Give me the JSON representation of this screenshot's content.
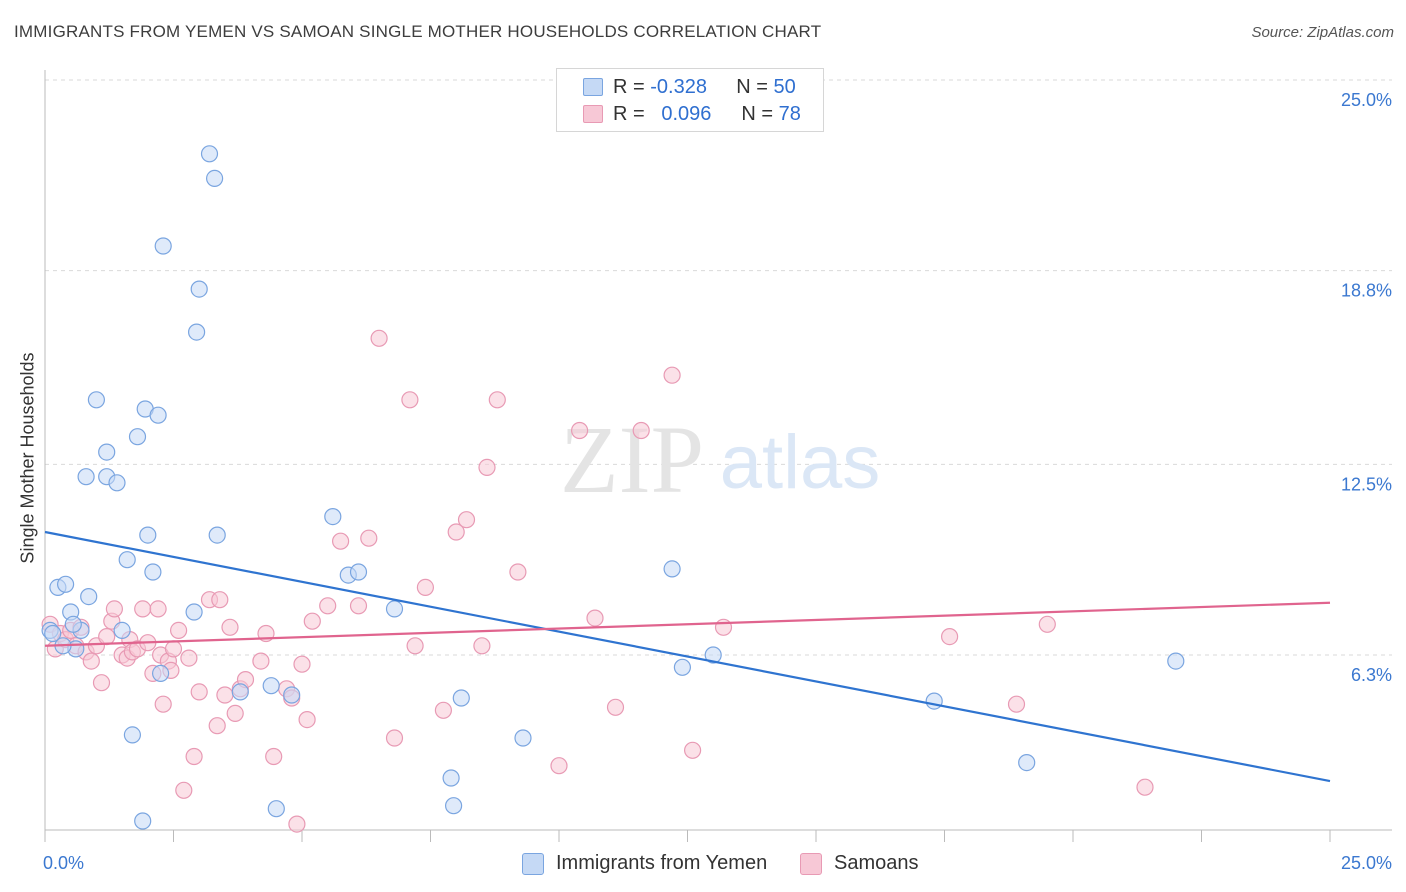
{
  "title": "IMMIGRANTS FROM YEMEN VS SAMOAN SINGLE MOTHER HOUSEHOLDS CORRELATION CHART",
  "source": "Source: ZipAtlas.com",
  "watermark": {
    "zip": "ZIP",
    "atlas": "atlas"
  },
  "legend": {
    "row1": {
      "r_label": "R =",
      "r_value": "-0.328",
      "n_label": "N =",
      "n_value": "50"
    },
    "row2": {
      "r_label": "R =",
      "r_value": "0.096",
      "n_label": "N =",
      "n_value": "78"
    }
  },
  "colors": {
    "blue_fill": "#c5d9f5",
    "blue_stroke": "#7aa5e0",
    "blue_line": "#2f74d0",
    "pink_fill": "#f7c8d6",
    "pink_stroke": "#e89ab4",
    "pink_line": "#e0648e",
    "tick_label": "#3b78d0",
    "grid": "#d9d9d9"
  },
  "chart_data": {
    "type": "scatter",
    "title": "IMMIGRANTS FROM YEMEN VS SAMOAN SINGLE MOTHER HOUSEHOLDS CORRELATION CHART",
    "xlabel": "",
    "ylabel": "Single Mother Households",
    "xlim": [
      0,
      25
    ],
    "ylim": [
      0,
      26
    ],
    "x_tick_labels": [
      "0.0%",
      "25.0%"
    ],
    "y_ticks": [
      6.3,
      12.5,
      18.8,
      25.0
    ],
    "y_tick_labels": [
      "6.3%",
      "12.5%",
      "18.8%",
      "25.0%"
    ],
    "grid": "horizontal dashed",
    "legend_placement": "bottom-center",
    "series": [
      {
        "name": "Immigrants from Yemen",
        "color": "#7aa5e0",
        "trend": {
          "x": [
            0,
            25
          ],
          "y": [
            10.3,
            2.2
          ]
        },
        "points": [
          [
            0.1,
            7.1
          ],
          [
            0.25,
            8.5
          ],
          [
            0.4,
            8.6
          ],
          [
            0.5,
            7.7
          ],
          [
            0.6,
            6.5
          ],
          [
            0.7,
            7.1
          ],
          [
            0.85,
            8.2
          ],
          [
            1.0,
            14.6
          ],
          [
            1.2,
            12.9
          ],
          [
            0.8,
            12.1
          ],
          [
            1.2,
            12.1
          ],
          [
            1.4,
            11.9
          ],
          [
            1.5,
            7.1
          ],
          [
            1.6,
            9.4
          ],
          [
            1.7,
            3.7
          ],
          [
            1.8,
            13.4
          ],
          [
            1.9,
            0.9
          ],
          [
            1.95,
            14.3
          ],
          [
            2.0,
            10.2
          ],
          [
            2.1,
            9.0
          ],
          [
            2.2,
            14.1
          ],
          [
            2.25,
            5.7
          ],
          [
            2.3,
            19.6
          ],
          [
            2.9,
            7.7
          ],
          [
            2.95,
            16.8
          ],
          [
            3.0,
            18.2
          ],
          [
            3.2,
            22.6
          ],
          [
            3.3,
            21.8
          ],
          [
            3.35,
            10.2
          ],
          [
            3.8,
            5.1
          ],
          [
            4.4,
            5.3
          ],
          [
            4.5,
            1.3
          ],
          [
            4.8,
            5.0
          ],
          [
            5.6,
            10.8
          ],
          [
            5.9,
            8.9
          ],
          [
            6.1,
            9.0
          ],
          [
            6.8,
            7.8
          ],
          [
            7.9,
            2.3
          ],
          [
            7.95,
            1.4
          ],
          [
            8.1,
            4.9
          ],
          [
            9.3,
            3.6
          ],
          [
            12.2,
            9.1
          ],
          [
            12.4,
            5.9
          ],
          [
            13.0,
            6.3
          ],
          [
            17.3,
            4.8
          ],
          [
            19.1,
            2.8
          ],
          [
            22.0,
            6.1
          ],
          [
            0.15,
            7.0
          ],
          [
            0.35,
            6.6
          ],
          [
            0.55,
            7.3
          ]
        ]
      },
      {
        "name": "Samoans",
        "color": "#e89ab4",
        "trend": {
          "x": [
            0,
            25
          ],
          "y": [
            6.6,
            8.0
          ]
        },
        "points": [
          [
            0.1,
            7.3
          ],
          [
            0.2,
            6.5
          ],
          [
            0.3,
            7.0
          ],
          [
            0.4,
            6.8
          ],
          [
            0.5,
            7.1
          ],
          [
            0.6,
            6.6
          ],
          [
            0.7,
            7.2
          ],
          [
            0.8,
            6.4
          ],
          [
            0.9,
            6.1
          ],
          [
            1.0,
            6.6
          ],
          [
            1.1,
            5.4
          ],
          [
            1.2,
            6.9
          ],
          [
            1.3,
            7.4
          ],
          [
            1.35,
            7.8
          ],
          [
            1.5,
            6.3
          ],
          [
            1.6,
            6.2
          ],
          [
            1.65,
            6.8
          ],
          [
            1.7,
            6.4
          ],
          [
            1.8,
            6.5
          ],
          [
            1.9,
            7.8
          ],
          [
            2.0,
            6.7
          ],
          [
            2.1,
            5.7
          ],
          [
            2.2,
            7.8
          ],
          [
            2.25,
            6.3
          ],
          [
            2.3,
            4.7
          ],
          [
            2.4,
            6.1
          ],
          [
            2.45,
            5.8
          ],
          [
            2.5,
            6.5
          ],
          [
            2.6,
            7.1
          ],
          [
            2.7,
            1.9
          ],
          [
            2.8,
            6.2
          ],
          [
            2.9,
            3.0
          ],
          [
            3.0,
            5.1
          ],
          [
            3.2,
            8.1
          ],
          [
            3.35,
            4.0
          ],
          [
            3.4,
            8.1
          ],
          [
            3.5,
            5.0
          ],
          [
            3.6,
            7.2
          ],
          [
            3.7,
            4.4
          ],
          [
            3.8,
            5.2
          ],
          [
            3.9,
            5.5
          ],
          [
            4.2,
            6.1
          ],
          [
            4.3,
            7.0
          ],
          [
            4.45,
            3.0
          ],
          [
            4.7,
            5.2
          ],
          [
            4.8,
            4.9
          ],
          [
            4.9,
            0.8
          ],
          [
            5.0,
            6.0
          ],
          [
            5.1,
            4.2
          ],
          [
            5.2,
            7.4
          ],
          [
            5.5,
            7.9
          ],
          [
            5.75,
            10.0
          ],
          [
            6.1,
            7.9
          ],
          [
            6.3,
            10.1
          ],
          [
            6.5,
            16.6
          ],
          [
            6.8,
            3.6
          ],
          [
            7.1,
            14.6
          ],
          [
            7.2,
            6.6
          ],
          [
            7.4,
            8.5
          ],
          [
            7.75,
            4.5
          ],
          [
            8.0,
            10.3
          ],
          [
            8.2,
            10.7
          ],
          [
            8.5,
            6.6
          ],
          [
            8.6,
            12.4
          ],
          [
            8.8,
            14.6
          ],
          [
            9.2,
            9.0
          ],
          [
            10.0,
            2.7
          ],
          [
            10.4,
            13.6
          ],
          [
            10.7,
            7.5
          ],
          [
            11.1,
            4.6
          ],
          [
            11.6,
            13.6
          ],
          [
            12.2,
            15.4
          ],
          [
            12.6,
            3.2
          ],
          [
            13.2,
            7.2
          ],
          [
            17.6,
            6.9
          ],
          [
            18.9,
            4.7
          ],
          [
            19.5,
            7.3
          ],
          [
            21.4,
            2.0
          ]
        ]
      }
    ]
  },
  "axis": {
    "x_left": "0.0%",
    "x_right": "25.0%"
  },
  "bottom_legend": {
    "item1": "Immigrants from Yemen",
    "item2": "Samoans"
  }
}
